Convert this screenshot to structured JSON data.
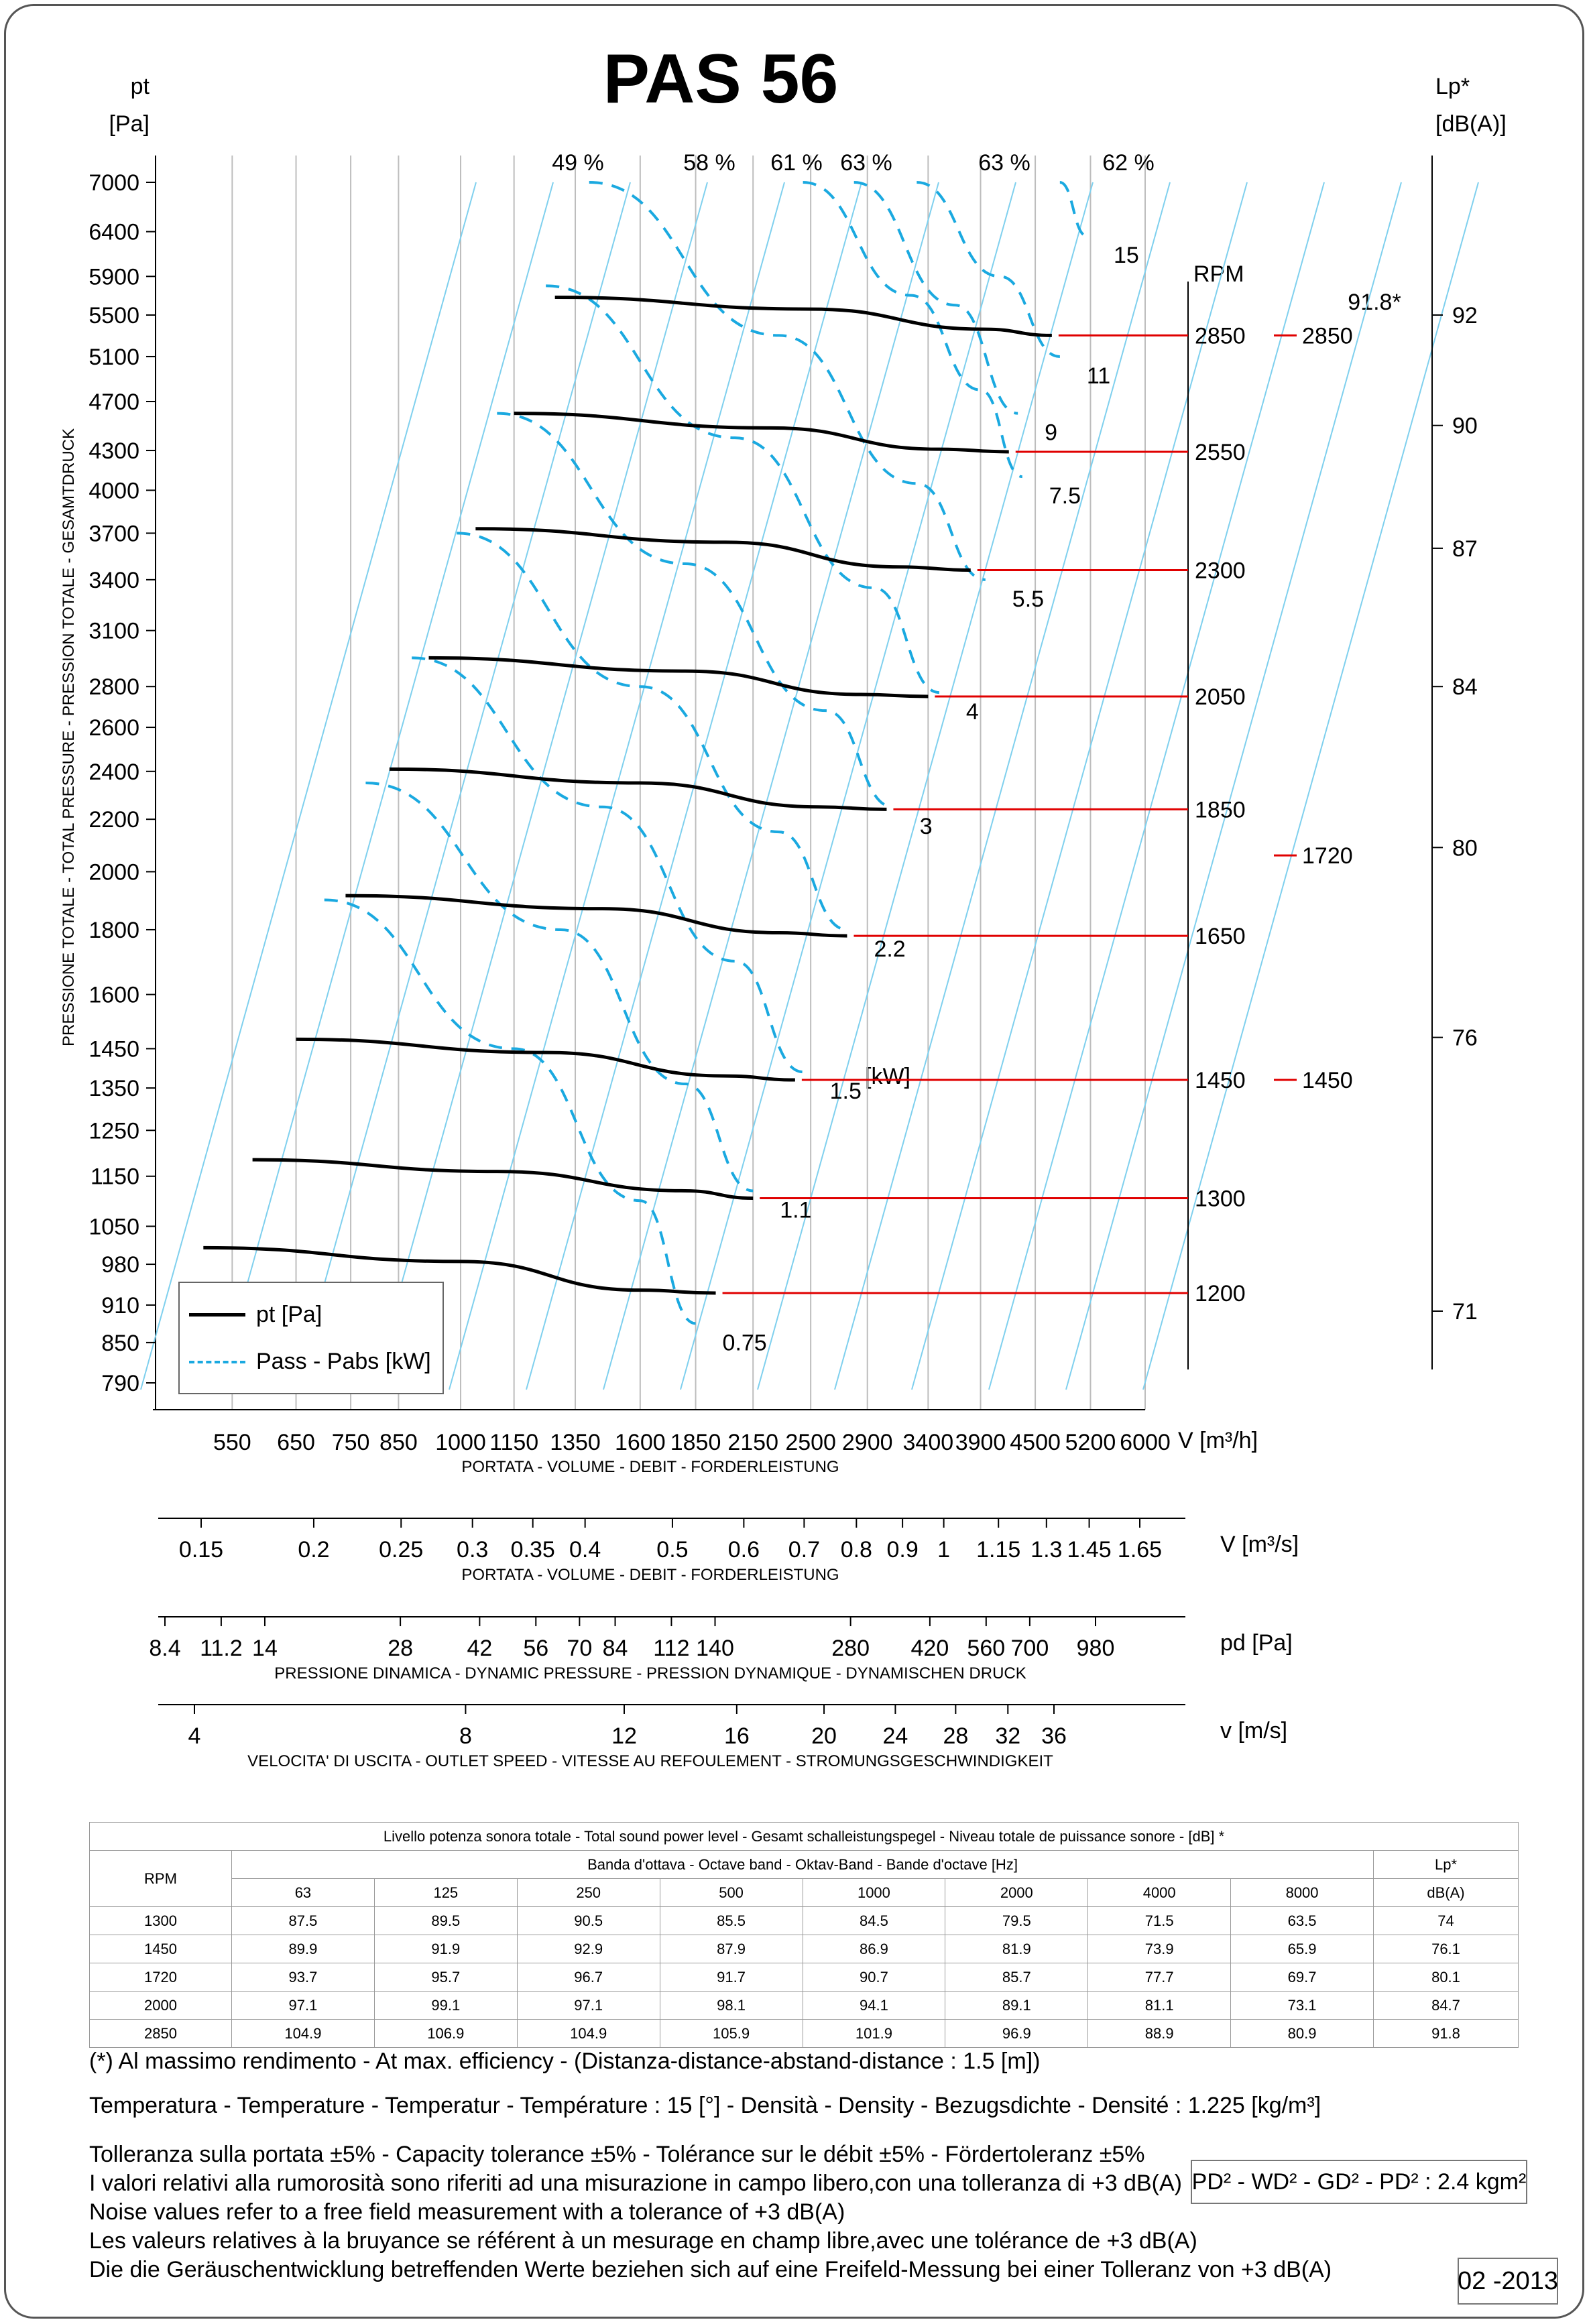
{
  "chart_data": {
    "type": "line",
    "title": "PAS 56",
    "left_axis": {
      "label_line1": "pt",
      "label_line2": "[Pa]",
      "side_label": "PRESSIONE TOTALE - TOTAL PRESSURE - PRESSION TOTALE - GESAMTDRUCK",
      "scale": "log",
      "ylim": [
        790,
        7000
      ],
      "ticks": [
        7000,
        6400,
        5900,
        5500,
        5100,
        4700,
        4300,
        4000,
        3700,
        3400,
        3100,
        2800,
        2600,
        2400,
        2200,
        2000,
        1800,
        1600,
        1450,
        1350,
        1250,
        1150,
        1050,
        980,
        910,
        850,
        790
      ]
    },
    "right_axis": {
      "label_line1": "Lp*",
      "label_line2": "[dB(A)]",
      "ticks": [
        {
          "value": 92,
          "pt": 5500
        },
        {
          "value": 90,
          "pt": 4500
        },
        {
          "value": 87,
          "pt": 3600
        },
        {
          "value": 84,
          "pt": 2800
        },
        {
          "value": 80,
          "pt": 2090
        },
        {
          "value": 76,
          "pt": 1480
        },
        {
          "value": 71,
          "pt": 900
        }
      ],
      "max_label": "91.8*"
    },
    "x_axis": {
      "label": "V [m³/h]",
      "caption": "PORTATA - VOLUME - DEBIT - FORDERLEISTUNG",
      "scale": "log",
      "xlim": [
        450,
        6000
      ],
      "ticks": [
        550,
        650,
        750,
        850,
        1000,
        1150,
        1350,
        1600,
        1850,
        2150,
        2500,
        2900,
        3400,
        3900,
        4500,
        5200,
        6000
      ]
    },
    "secondary_scales": [
      {
        "label": "V  [m³/s]",
        "caption": "PORTATA - VOLUME - DEBIT - FORDERLEISTUNG",
        "ticks": [
          "0.15",
          "0.2",
          "0.25",
          "0.3",
          "0.35",
          "0.4",
          "0.5",
          "0.6",
          "0.7",
          "0.8",
          "0.9",
          "1",
          "1.15",
          "1.3",
          "1.45",
          "1.65"
        ],
        "values": [
          0.15,
          0.2,
          0.25,
          0.3,
          0.35,
          0.4,
          0.5,
          0.6,
          0.7,
          0.8,
          0.9,
          1,
          1.15,
          1.3,
          1.45,
          1.65
        ]
      },
      {
        "label": "pd  [Pa]",
        "caption": "PRESSIONE DINAMICA - DYNAMIC PRESSURE - PRESSION DYNAMIQUE - DYNAMISCHEN DRUCK",
        "ticks": [
          "8.4",
          "11.2",
          "14",
          "28",
          "42",
          "56",
          "70",
          "84",
          "112",
          "140",
          "280",
          "420",
          "560",
          "700",
          "980"
        ],
        "values": [
          8.4,
          11.2,
          14,
          28,
          42,
          56,
          70,
          84,
          112,
          140,
          280,
          420,
          560,
          700,
          980
        ]
      },
      {
        "label": "v  [m/s]",
        "caption": "VELOCITA' DI USCITA - OUTLET SPEED - VITESSE AU REFOULEMENT - STROMUNGSGESCHWINDIGKEIT",
        "ticks": [
          "4",
          "8",
          "12",
          "16",
          "20",
          "24",
          "28",
          "32",
          "36"
        ],
        "values": [
          4,
          8,
          12,
          16,
          20,
          24,
          28,
          32,
          36
        ]
      }
    ],
    "efficiency_labels": [
      "49 %",
      "58 %",
      "61 %",
      "63 %",
      "63 %",
      "62 %"
    ],
    "rpm_header": "RPM",
    "kw_unit": "[kW]",
    "series": [
      {
        "rpm": "1200",
        "x": [
          510,
          1000,
          1600,
          1950
        ],
        "y": [
          1010,
          985,
          935,
          930
        ]
      },
      {
        "rpm": "1300",
        "x": [
          580,
          1100,
          1800,
          2150
        ],
        "y": [
          1185,
          1160,
          1120,
          1105
        ]
      },
      {
        "rpm": "1450",
        "x": [
          650,
          1250,
          2000,
          2400
        ],
        "y": [
          1475,
          1440,
          1380,
          1370
        ]
      },
      {
        "rpm": "1650",
        "x": [
          740,
          1450,
          2300,
          2750
        ],
        "y": [
          1915,
          1870,
          1790,
          1780
        ]
      },
      {
        "rpm": "1850",
        "x": [
          830,
          1600,
          2550,
          3050
        ],
        "y": [
          2410,
          2350,
          2250,
          2240
        ]
      },
      {
        "rpm": "2050",
        "x": [
          920,
          1800,
          2850,
          3400
        ],
        "y": [
          2950,
          2880,
          2760,
          2750
        ]
      },
      {
        "rpm": "2300",
        "x": [
          1040,
          2000,
          3150,
          3800
        ],
        "y": [
          3730,
          3640,
          3480,
          3460
        ]
      },
      {
        "rpm": "2550",
        "x": [
          1150,
          2250,
          3500,
          4200
        ],
        "y": [
          4600,
          4480,
          4310,
          4290
        ]
      },
      {
        "rpm": "2850",
        "x": [
          1280,
          2500,
          3950,
          4700
        ],
        "y": [
          5680,
          5560,
          5360,
          5300
        ]
      }
    ],
    "power_curves": [
      {
        "kw": "0.75",
        "x": [
          700,
          1150,
          1600,
          1850
        ],
        "y": [
          1900,
          1450,
          1100,
          880
        ]
      },
      {
        "kw": "1.1",
        "x": [
          780,
          1300,
          1800,
          2150
        ],
        "y": [
          2350,
          1800,
          1360,
          1120
        ]
      },
      {
        "kw": "1.5",
        "x": [
          880,
          1450,
          2050,
          2450
        ],
        "y": [
          2950,
          2250,
          1700,
          1390
        ]
      },
      {
        "kw": "2.2",
        "x": [
          990,
          1600,
          2300,
          2750
        ],
        "y": [
          3700,
          2800,
          2150,
          1800
        ]
      },
      {
        "kw": "3",
        "x": [
          1100,
          1800,
          2600,
          3100
        ],
        "y": [
          4600,
          3500,
          2680,
          2250
        ]
      },
      {
        "kw": "4",
        "x": [
          1250,
          2050,
          2950,
          3500
        ],
        "y": [
          5800,
          4400,
          3350,
          2770
        ]
      },
      {
        "kw": "5.5",
        "x": [
          1400,
          2300,
          3300,
          3950
        ],
        "y": [
          7000,
          5300,
          4050,
          3400
        ]
      },
      {
        "kw": "7.5",
        "x": [
          2450,
          3250,
          3900,
          4350
        ],
        "y": [
          7000,
          5700,
          4800,
          4100
        ]
      },
      {
        "kw": "9",
        "x": [
          2800,
          3650,
          4300
        ],
        "y": [
          7000,
          5600,
          4600
        ]
      },
      {
        "kw": "11",
        "x": [
          3300,
          4100,
          4800
        ],
        "y": [
          7000,
          5900,
          5100
        ]
      },
      {
        "kw": "15",
        "x": [
          4800,
          5150
        ],
        "y": [
          7000,
          6350
        ]
      }
    ],
    "side_rpm_labels": [
      "2850",
      "1720",
      "1450"
    ],
    "grid": true,
    "legend": {
      "position": "bottom-left",
      "pt_label": "pt [Pa]",
      "power_label": "Pass - Pabs [kW]"
    }
  },
  "table": {
    "title": "Livello potenza sonora totale - Total sound power level - Gesamt schalleistungspegel - Niveau totale de puissance sonore - [dB]   *",
    "band_header": "Banda d'ottava - Octave band - Oktav-Band - Bande d'octave [Hz]",
    "rpm_header": "RPM",
    "lp_header_1": "Lp*",
    "lp_header_2": "dB(A)",
    "bands": [
      "63",
      "125",
      "250",
      "500",
      "1000",
      "2000",
      "4000",
      "8000"
    ],
    "rows": [
      {
        "rpm": "1300",
        "values": [
          "87.5",
          "89.5",
          "90.5",
          "85.5",
          "84.5",
          "79.5",
          "71.5",
          "63.5"
        ],
        "lp": "74"
      },
      {
        "rpm": "1450",
        "values": [
          "89.9",
          "91.9",
          "92.9",
          "87.9",
          "86.9",
          "81.9",
          "73.9",
          "65.9"
        ],
        "lp": "76.1"
      },
      {
        "rpm": "1720",
        "values": [
          "93.7",
          "95.7",
          "96.7",
          "91.7",
          "90.7",
          "85.7",
          "77.7",
          "69.7"
        ],
        "lp": "80.1"
      },
      {
        "rpm": "2000",
        "values": [
          "97.1",
          "99.1",
          "97.1",
          "98.1",
          "94.1",
          "89.1",
          "81.1",
          "73.1"
        ],
        "lp": "84.7"
      },
      {
        "rpm": "2850",
        "values": [
          "104.9",
          "106.9",
          "104.9",
          "105.9",
          "101.9",
          "96.9",
          "88.9",
          "80.9"
        ],
        "lp": "91.8"
      }
    ]
  },
  "notes": {
    "efficiency": "(*) Al massimo rendimento - At max. efficiency - (Distanza-distance-abstand-distance : 1.5 [m])",
    "conditions": "Temperatura - Temperature - Temperatur - Température : 15 [°]  -  Densità - Density - Bezugsdichte - Densité : 1.225 [kg/m³]",
    "tolerance_1": "Tolleranza sulla portata  ±5% - Capacity tolerance ±5% - Tolérance sur le débit ±5% - Fördertoleranz ±5%",
    "tolerance_2": "I valori relativi alla rumorosità sono riferiti ad una misurazione in campo libero,con una tolleranza di +3 dB(A)",
    "tolerance_3": "Noise values refer to a free field measurement with a tolerance of +3 dB(A)",
    "tolerance_4": "Les valeurs relatives à la bruyance se référent à un mesurage en champ libre,avec une tolérance de +3 dB(A)",
    "tolerance_5": "Die die Geräuschentwicklung betreffenden Werte beziehen sich auf eine Freifeld-Messung bei einer Tolleranz von +3 dB(A)",
    "inertia": "PD² -  WD² - GD² -  PD²  :  2.4 kgm²",
    "date": "02 -2013"
  }
}
